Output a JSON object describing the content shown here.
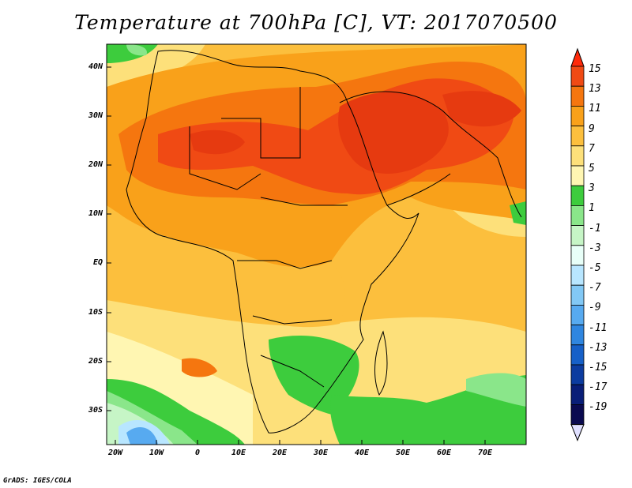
{
  "title": "Temperature at 700hPa [C], VT: 2017070500",
  "credit": "GrADS: IGES/COLA",
  "lat_labels": [
    "40N",
    "30N",
    "20N",
    "10N",
    "EQ",
    "10S",
    "20S",
    "30S"
  ],
  "lon_labels": [
    "20W",
    "10W",
    "0",
    "10E",
    "20E",
    "30E",
    "40E",
    "50E",
    "60E",
    "70E"
  ],
  "colorbar": {
    "levels": [
      "15",
      "13",
      "11",
      "9",
      "7",
      "5",
      "3",
      "1",
      "-1",
      "-3",
      "-5",
      "-7",
      "-9",
      "-11",
      "-13",
      "-15",
      "-17",
      "-19"
    ],
    "colors": [
      "#ff2a0a",
      "#f04a14",
      "#f5760f",
      "#f9a11a",
      "#fcbf3d",
      "#fde07a",
      "#fff6b2",
      "#3dcc3d",
      "#8ae68a",
      "#c6f5c6",
      "#e8fff8",
      "#b8e6ff",
      "#82c8f5",
      "#57aaf0",
      "#2f86e0",
      "#1660c8",
      "#0c3ca0",
      "#091e78",
      "#0a0a50",
      "#e0e0ff"
    ]
  }
}
